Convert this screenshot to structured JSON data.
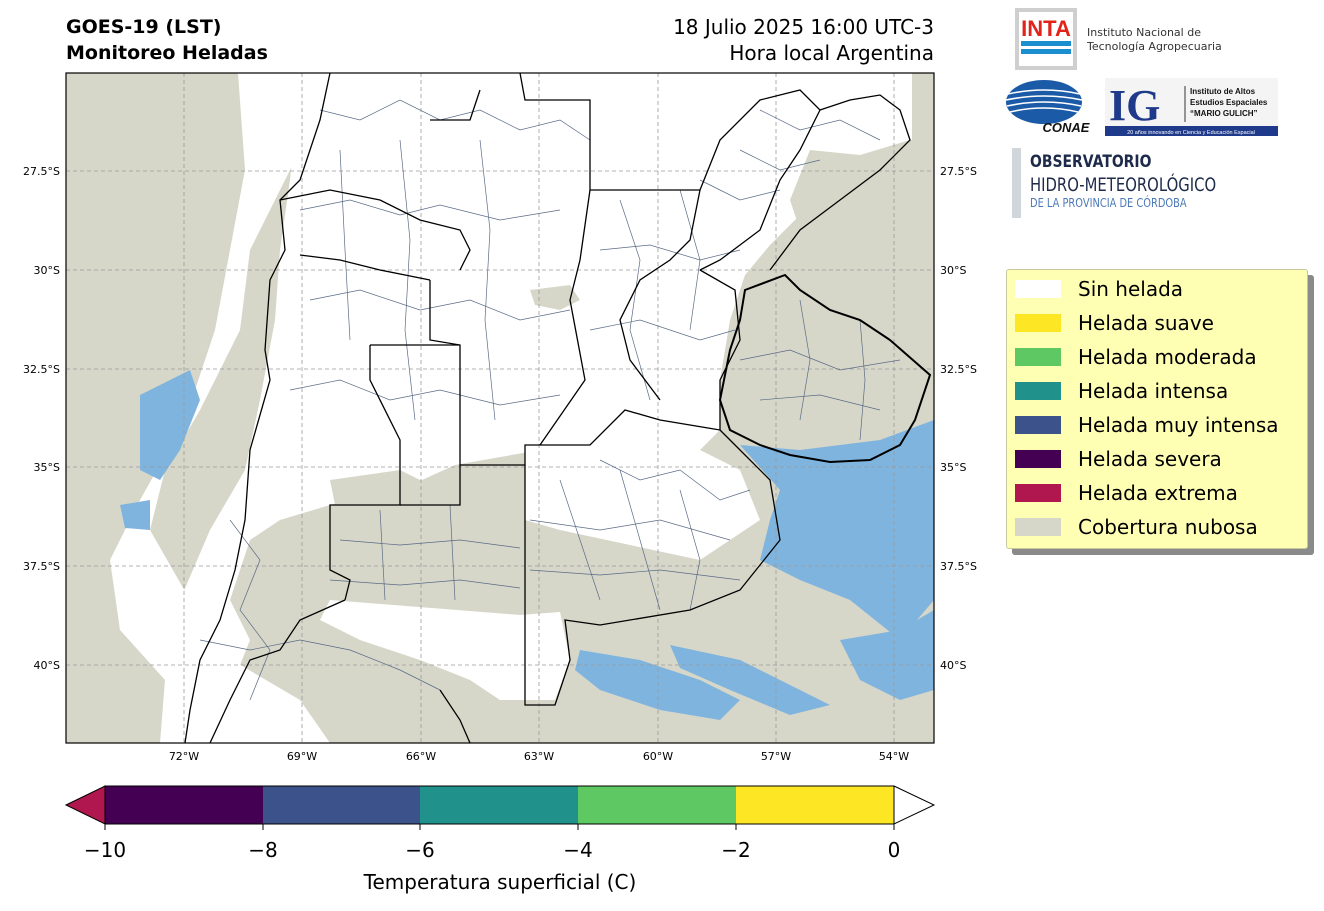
{
  "header": {
    "title_line1": "GOES-19 (LST)",
    "title_line2": "Monitoreo Heladas",
    "date_line": "18 Julio 2025 16:00 UTC-3",
    "local_line": "Hora local Argentina"
  },
  "logos": {
    "inta_mark": "INTA",
    "inta_line1": "Instituto Nacional de",
    "inta_line2": "Tecnología Agropecuaria",
    "conae": "CONAE",
    "ig_mark": "IG",
    "ig_line1": "Instituto de Altos",
    "ig_line2": "Estudios Espaciales",
    "ig_line3": "“MARIO GULICH”",
    "ig_tag": "20 años innovando en Ciencia y Educación Espacial",
    "obs_line1": "OBSERVATORIO",
    "obs_line2": "HIDRO-METEOROLÓGICO",
    "obs_line3": "DE LA PROVINCIA DE CÓRDOBA"
  },
  "map": {
    "lon_labels": [
      "72°W",
      "69°W",
      "66°W",
      "63°W",
      "60°W",
      "57°W",
      "54°W"
    ],
    "lat_labels": [
      "27.5°S",
      "30°S",
      "32.5°S",
      "35°S",
      "37.5°S",
      "40°S"
    ],
    "colors": {
      "no_frost": "#ffffff",
      "cloud": "#d7d7c9",
      "ocean_cold": "#7fb4df",
      "boundary": "#000000",
      "district": "#5a6b86",
      "grid": "#9a9a9a"
    }
  },
  "legend": {
    "items": [
      {
        "label": "Sin helada",
        "color": "#ffffff"
      },
      {
        "label": "Helada suave",
        "color": "#fde725"
      },
      {
        "label": "Helada moderada",
        "color": "#5ec962"
      },
      {
        "label": "Helada intensa",
        "color": "#21918c"
      },
      {
        "label": "Helada muy intensa",
        "color": "#3b528b"
      },
      {
        "label": "Helada severa",
        "color": "#440154"
      },
      {
        "label": "Helada extrema",
        "color": "#b0174e"
      },
      {
        "label": "Cobertura nubosa",
        "color": "#d7d7c9"
      }
    ]
  },
  "colorbar": {
    "label": "Temperatura superficial (C)",
    "ticks": [
      "−10",
      "−8",
      "−6",
      "−4",
      "−2",
      "0"
    ],
    "bins": [
      {
        "from": -10,
        "to": -8,
        "color": "#440154"
      },
      {
        "from": -8,
        "to": -6,
        "color": "#3b528b"
      },
      {
        "from": -6,
        "to": -4,
        "color": "#21918c"
      },
      {
        "from": -4,
        "to": -2,
        "color": "#5ec962"
      },
      {
        "from": -2,
        "to": 0,
        "color": "#fde725"
      }
    ],
    "under_color": "#b0174e",
    "over_color": "#ffffff"
  }
}
